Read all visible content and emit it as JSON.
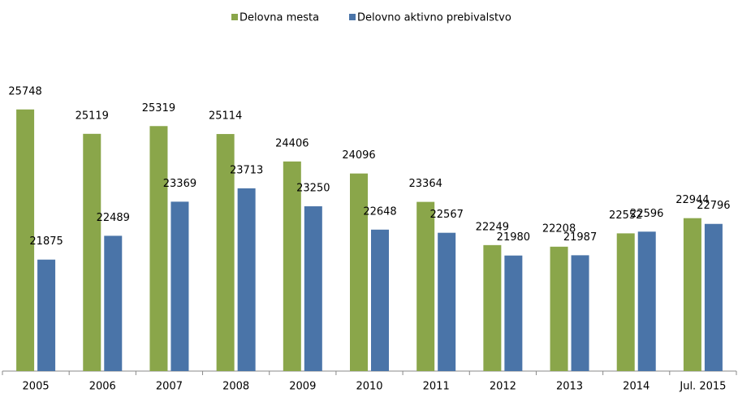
{
  "chart_data": {
    "type": "bar",
    "categories": [
      "2005",
      "2006",
      "2007",
      "2008",
      "2009",
      "2010",
      "2011",
      "2012",
      "2013",
      "2014",
      "Jul. 2015"
    ],
    "series": [
      {
        "name": "Delovna mesta",
        "color": "#8aa64a",
        "values": [
          25748,
          25119,
          25319,
          25114,
          24406,
          24096,
          23364,
          22249,
          22208,
          22552,
          22944
        ]
      },
      {
        "name": "Delovno aktivno prebivalstvo",
        "color": "#4a74a8",
        "values": [
          21875,
          22489,
          23369,
          23713,
          23250,
          22648,
          22567,
          21980,
          21987,
          22596,
          22796
        ]
      }
    ],
    "ylim": [
      19000,
      27000
    ]
  }
}
